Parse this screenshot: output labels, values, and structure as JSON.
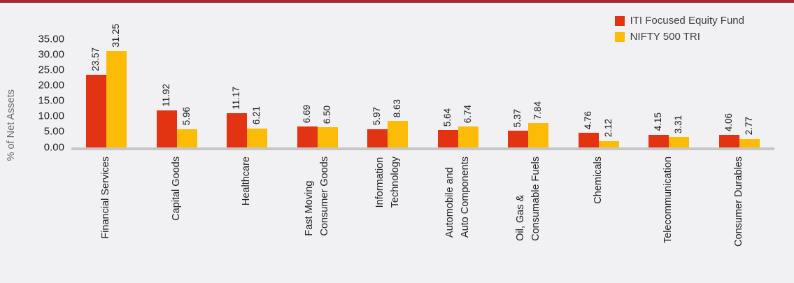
{
  "chart_data": {
    "type": "bar",
    "title": "",
    "ylabel": "% of Net Assets",
    "ylim": [
      0,
      35
    ],
    "ytick_step": 5,
    "ytick_labels": [
      "0.00",
      "5.00",
      "10.00",
      "15.00",
      "20.00",
      "25.00",
      "30.00",
      "35.00"
    ],
    "grid": false,
    "legend_position": "top-right",
    "categories": [
      "Financial Services",
      "Capital Goods",
      "Healthcare",
      "Fast Moving\nConsumer Goods",
      "Information\nTechnology",
      "Automobile and\nAuto Components",
      "Oil, Gas &\nConsumable Fuels",
      "Chemicals",
      "Telecommunication",
      "Consumer Durables"
    ],
    "series": [
      {
        "name": "ITI Focused Equity Fund",
        "color": "#E23312",
        "values": [
          23.57,
          11.92,
          11.17,
          6.69,
          5.97,
          5.64,
          5.37,
          4.76,
          4.15,
          4.06
        ]
      },
      {
        "name": "NIFTY 500 TRI",
        "color": "#FBBB06",
        "values": [
          31.25,
          5.96,
          6.21,
          6.5,
          8.63,
          6.74,
          7.84,
          2.12,
          3.31,
          2.77
        ]
      }
    ]
  },
  "colors": {
    "background": "#F1F1F4",
    "accent_bar": "#A32836",
    "axis_line": "#C6C6C6",
    "tick_text": "#1F1F1F",
    "value_text": "#1A1A1A",
    "category_text": "#212121",
    "legend_text": "#3F3F3F",
    "y_title_text": "#6B6B6B"
  }
}
